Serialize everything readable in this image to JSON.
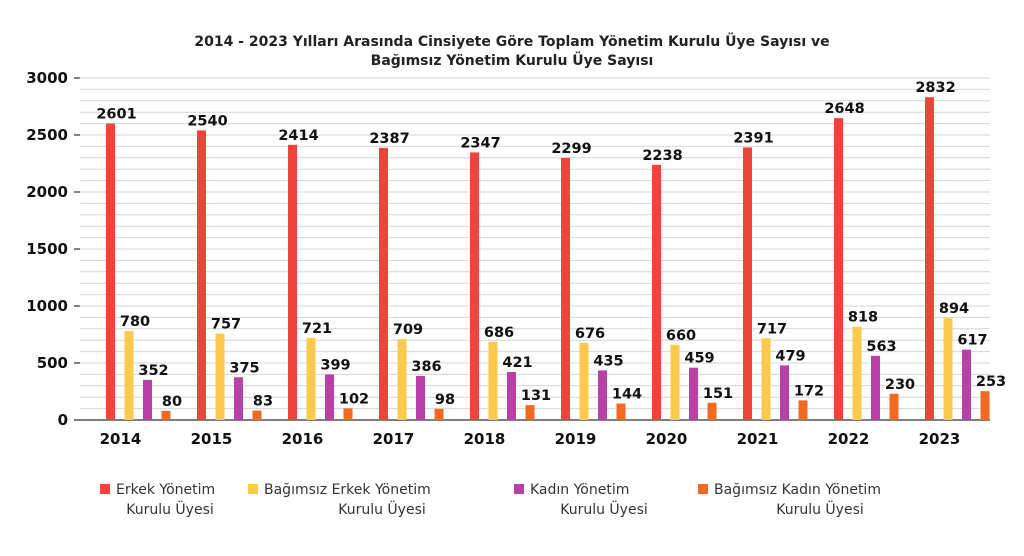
{
  "chart_data": {
    "type": "bar",
    "title_lines": [
      "2014 - 2023 Yılları Arasında Cinsiyete Göre Toplam Yönetim Kurulu Üye Sayısı ve",
      "Bağımsız Yönetim Kurulu Üye Sayısı"
    ],
    "categories": [
      "2014",
      "2015",
      "2016",
      "2017",
      "2018",
      "2019",
      "2020",
      "2021",
      "2022",
      "2023"
    ],
    "series": [
      {
        "name": "Erkek Yönetim Kurulu Üyesi",
        "legend_lines": [
          "Erkek Yönetim",
          "Kurulu Üyesi"
        ],
        "color": "#ef4439",
        "values": [
          2601,
          2540,
          2414,
          2387,
          2347,
          2299,
          2238,
          2391,
          2648,
          2832
        ]
      },
      {
        "name": "Bağımsız Erkek Yönetim Kurulu Üyesi",
        "legend_lines": [
          "Bağımsız Erkek Yönetim",
          "Kurulu Üyesi"
        ],
        "color": "#fbc94b",
        "values": [
          780,
          757,
          721,
          709,
          686,
          676,
          660,
          717,
          818,
          894
        ]
      },
      {
        "name": "Kadın Yönetim Kurulu Üyesi",
        "legend_lines": [
          "Kadın Yönetim",
          "Kurulu Üyesi"
        ],
        "color": "#b940a6",
        "values": [
          352,
          375,
          399,
          386,
          421,
          435,
          459,
          479,
          563,
          617
        ]
      },
      {
        "name": "Bağımsız Kadın Yönetim Kurulu Üyesi",
        "legend_lines": [
          "Bağımsız Kadın Yönetim",
          "Kurulu Üyesi"
        ],
        "color": "#f26a21",
        "values": [
          80,
          83,
          102,
          98,
          131,
          144,
          151,
          172,
          230,
          253
        ]
      }
    ],
    "yticks": [
      0,
      500,
      1000,
      1500,
      2000,
      2500,
      3000
    ],
    "ylim": [
      0,
      3000
    ],
    "xlabel": "",
    "ylabel": "",
    "grid": true,
    "legend_position": "bottom"
  }
}
